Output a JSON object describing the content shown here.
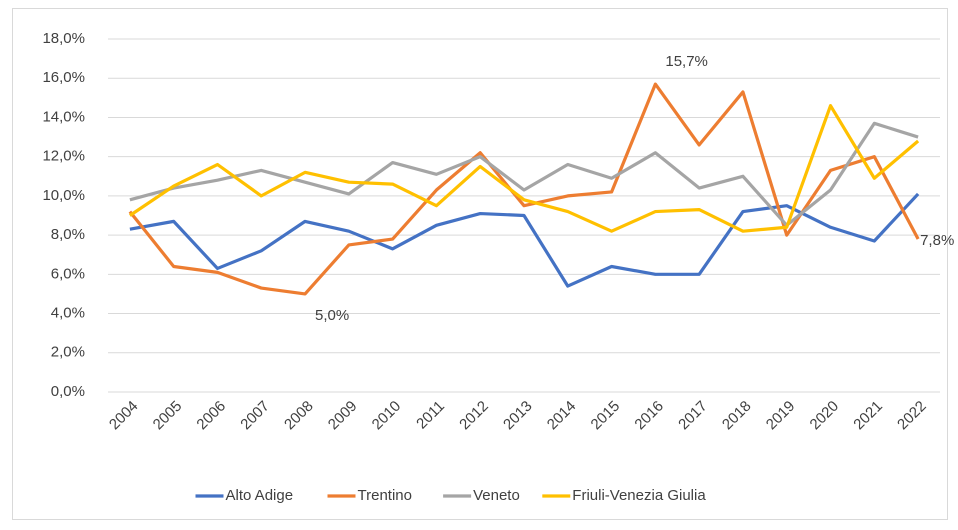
{
  "chart_data": {
    "type": "line",
    "categories": [
      "2004",
      "2005",
      "2006",
      "2007",
      "2008",
      "2009",
      "2010",
      "2011",
      "2012",
      "2013",
      "2014",
      "2015",
      "2016",
      "2017",
      "2018",
      "2019",
      "2020",
      "2021",
      "2022"
    ],
    "series": [
      {
        "name": "Alto Adige",
        "color": "#4472c4",
        "values": [
          8.3,
          8.7,
          6.3,
          7.2,
          8.7,
          8.2,
          7.3,
          8.5,
          9.1,
          9.0,
          5.4,
          6.4,
          6.0,
          6.0,
          9.2,
          9.5,
          8.4,
          7.7,
          10.1
        ]
      },
      {
        "name": "Trentino",
        "color": "#ed7d31",
        "values": [
          9.2,
          6.4,
          6.1,
          5.3,
          5.0,
          7.5,
          7.8,
          10.3,
          12.2,
          9.5,
          10.0,
          10.2,
          15.7,
          12.6,
          15.3,
          8.0,
          11.3,
          12.0,
          7.8
        ],
        "value_labels": [
          null,
          null,
          null,
          null,
          "5,0%",
          null,
          null,
          null,
          null,
          null,
          null,
          null,
          "15,7%",
          null,
          null,
          null,
          null,
          null,
          "7,8%"
        ]
      },
      {
        "name": "Veneto",
        "color": "#a5a5a5",
        "values": [
          9.8,
          10.4,
          10.8,
          11.3,
          10.7,
          10.1,
          11.7,
          11.1,
          12.0,
          10.3,
          11.6,
          10.9,
          12.2,
          10.4,
          11.0,
          8.5,
          10.3,
          13.7,
          13.0
        ]
      },
      {
        "name": "Friuli-Venezia Giulia",
        "color": "#ffc000",
        "values": [
          9.0,
          10.5,
          11.6,
          10.0,
          11.2,
          10.7,
          10.6,
          9.5,
          11.5,
          9.8,
          9.2,
          8.2,
          9.2,
          9.3,
          8.2,
          8.4,
          14.6,
          10.9,
          12.8
        ]
      }
    ],
    "ylim": [
      0,
      18
    ],
    "yticks": [
      {
        "value": 0,
        "label": "0,0%"
      },
      {
        "value": 2,
        "label": "2,0%"
      },
      {
        "value": 4,
        "label": "4,0%"
      },
      {
        "value": 6,
        "label": "6,0%"
      },
      {
        "value": 8,
        "label": "8,0%"
      },
      {
        "value": 10,
        "label": "10,0%"
      },
      {
        "value": 12,
        "label": "12,0%"
      },
      {
        "value": 14,
        "label": "14,0%"
      },
      {
        "value": 16,
        "label": "16,0%"
      },
      {
        "value": 18,
        "label": "18,0%"
      }
    ],
    "grid": true,
    "legend": "bottom"
  }
}
